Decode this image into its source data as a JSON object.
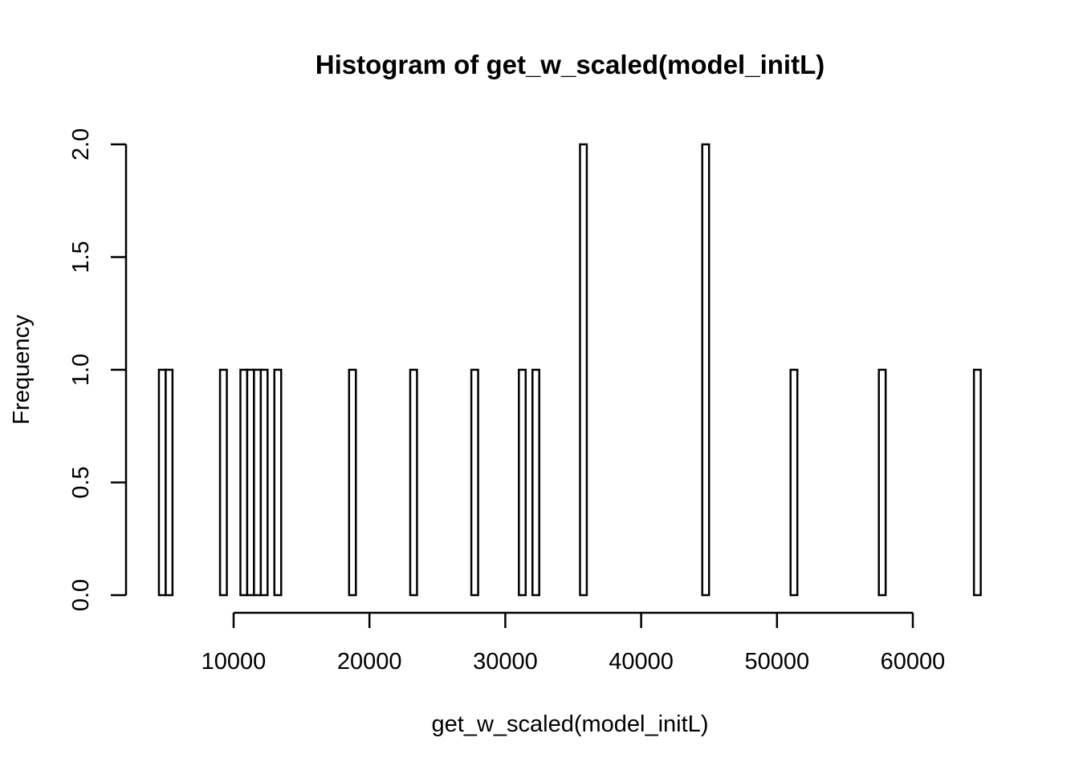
{
  "chart_data": {
    "type": "histogram",
    "title": "Histogram of get_w_scaled(model_initL)",
    "xlabel": "get_w_scaled(model_initL)",
    "ylabel": "Frequency",
    "xlim": [
      4500,
      65000
    ],
    "ylim": [
      0,
      2
    ],
    "x_ticks": [
      10000,
      20000,
      30000,
      40000,
      50000,
      60000
    ],
    "x_tick_labels": [
      "10000",
      "20000",
      "30000",
      "40000",
      "50000",
      "60000"
    ],
    "y_ticks": [
      0,
      0.5,
      1,
      1.5,
      2
    ],
    "y_tick_labels": [
      "0.0",
      "0.5",
      "1.0",
      "1.5",
      "2.0"
    ],
    "bin_width": 500,
    "bins": [
      {
        "start": 4500,
        "count": 1
      },
      {
        "start": 5000,
        "count": 1
      },
      {
        "start": 9000,
        "count": 1
      },
      {
        "start": 10500,
        "count": 1
      },
      {
        "start": 11000,
        "count": 1
      },
      {
        "start": 11500,
        "count": 1
      },
      {
        "start": 12000,
        "count": 1
      },
      {
        "start": 13000,
        "count": 1
      },
      {
        "start": 18500,
        "count": 1
      },
      {
        "start": 23000,
        "count": 1
      },
      {
        "start": 27500,
        "count": 1
      },
      {
        "start": 31000,
        "count": 1
      },
      {
        "start": 32000,
        "count": 1
      },
      {
        "start": 35500,
        "count": 2
      },
      {
        "start": 44500,
        "count": 2
      },
      {
        "start": 51000,
        "count": 1
      },
      {
        "start": 57500,
        "count": 1
      },
      {
        "start": 64500,
        "count": 1
      }
    ]
  }
}
